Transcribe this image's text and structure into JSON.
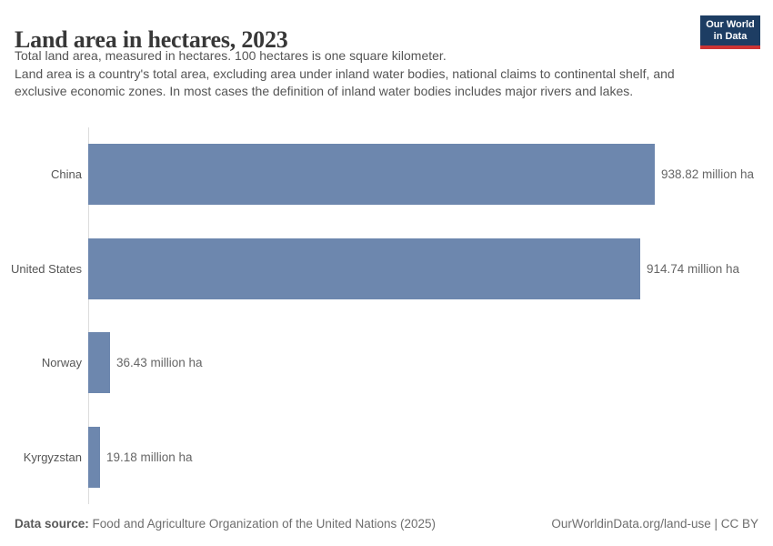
{
  "header": {
    "title": "Land area in hectares, 2023",
    "subtitle_line1": "Total land area, measured in hectares. 100 hectares is one square kilometer.",
    "subtitle_line2": "Land area is a country's total area, excluding area under inland water bodies, national claims to continental shelf, and exclusive economic zones. In most cases the definition of inland water bodies includes major rivers and lakes.",
    "logo": {
      "line1": "Our World",
      "line2": "in Data"
    }
  },
  "chart_data": {
    "type": "bar",
    "orientation": "horizontal",
    "title": "Land area in hectares, 2023",
    "categories": [
      "China",
      "United States",
      "Norway",
      "Kyrgyzstan"
    ],
    "values": [
      938.82,
      914.74,
      36.43,
      19.18
    ],
    "values_display": [
      "938.82 million ha",
      "914.74 million ha",
      "36.43 million ha",
      "19.18 million ha"
    ],
    "unit": "million ha",
    "xlim": [
      0,
      938.82
    ],
    "grid": false,
    "legend": "none",
    "bar_color": "#6d87ae",
    "axis_line_color": "#dcdcdc"
  },
  "footer": {
    "source_label": "Data source:",
    "source_text": " Food and Agriculture Organization of the United Nations (2025)",
    "credit": "OurWorldinData.org/land-use | CC BY"
  },
  "colors": {
    "title": "#383838",
    "subtitle": "#555555",
    "bar": "#6d87ae",
    "logo_navy": "#1d3d63",
    "logo_red": "#cc3434"
  }
}
